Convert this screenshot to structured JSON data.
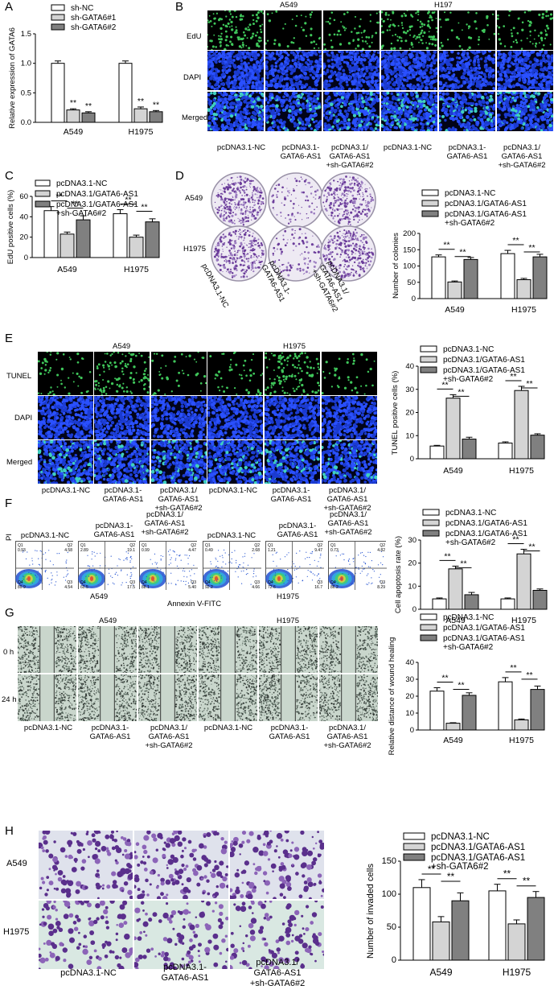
{
  "colors": {
    "white_bar": "#ffffff",
    "light_bar": "#d4d4d4",
    "dark_bar": "#808080",
    "fluor_blue": "#0d1aa0",
    "edu_green": "#3fc65a",
    "crystal_violet": "#6b3c9a",
    "wound_bg": "#c9d6cc"
  },
  "panel_labels": {
    "a": "A",
    "b": "B",
    "c": "C",
    "d": "D",
    "e": "E",
    "f": "F",
    "g": "G",
    "h": "H"
  },
  "lines": {
    "a549": "A549",
    "h197": "H197",
    "h1975": "H1975"
  },
  "groups": {
    "nc": "pcDNA3.1-NC",
    "as1_a": "pcDNA3.1-",
    "as1_b": "GATA6-AS1",
    "combo_a": "pcDNA3.1/",
    "combo_b": "GATA6-AS1",
    "combo_c": "+sh-GATA6#2",
    "nc_rot": "pcDNA3.1-NC",
    "as1_rot_a": "pcDNA3.1-",
    "as1_rot_b": "GATA6-AS1",
    "combo_rot_a": "pcDNA3.1/",
    "combo_rot_b": "GATA6-AS1",
    "combo_rot_c": "+sh-GATA6#2"
  },
  "rows": {
    "edu": "EdU",
    "dapi": "DAPI",
    "merged": "Merged",
    "tunel": "TUNEL",
    "t0": "0 h",
    "t24": "24 h"
  },
  "legend": {
    "sh_nc": "sh-NC",
    "sh1": "sh-GATA6#1",
    "sh2": "sh-GATA6#2",
    "nc": "pcDNA3.1-NC",
    "as1": "pcDNA3.1/GATA6-AS1",
    "combo_a": "pcDNA3.1/GATA6-AS1",
    "combo_b": "+sh-GATA6#2"
  },
  "sig": "**",
  "flow": {
    "axis_y": "PI",
    "axis_x": "Annexin V-FITC",
    "quadrants": [
      {
        "q1": "0.93",
        "q2": "4.58",
        "q3": "4.54",
        "q4": "89.9"
      },
      {
        "q1": "2.89",
        "q2": "19.1",
        "q3": "17.5",
        "q4": "60.5"
      },
      {
        "q1": "0.99",
        "q2": "4.47",
        "q3": "5.40",
        "q4": "88.1"
      },
      {
        "q1": "0.49",
        "q2": "2.68",
        "q3": "4.66",
        "q4": "92.2"
      },
      {
        "q1": "1.21",
        "q2": "9.47",
        "q3": "16.7",
        "q4": "72.6"
      },
      {
        "q1": "0.73",
        "q2": "4.82",
        "q3": "8.29",
        "q4": "86.2"
      }
    ],
    "qnames": {
      "q1": "Q1",
      "q2": "Q2",
      "q3": "Q3",
      "q4": "Q4"
    }
  },
  "chart_data": [
    {
      "id": "A",
      "type": "bar",
      "ylabel": "Relative expression of GATA6",
      "ylim": [
        0,
        1.5
      ],
      "yticks": [
        "0.0",
        "0.5",
        "1.0",
        "1.5"
      ],
      "categories": [
        "A549",
        "H1975"
      ],
      "series": [
        {
          "name": "sh-NC",
          "values": [
            1.0,
            1.0
          ],
          "err": [
            0.04,
            0.04
          ]
        },
        {
          "name": "sh-GATA6#1",
          "values": [
            0.21,
            0.23
          ],
          "err": [
            0.02,
            0.03
          ]
        },
        {
          "name": "sh-GATA6#2",
          "values": [
            0.16,
            0.18
          ],
          "err": [
            0.02,
            0.02
          ]
        }
      ]
    },
    {
      "id": "C",
      "type": "bar",
      "ylabel": "EdU positive cells (%)",
      "ylim": [
        0,
        60
      ],
      "yticks": [
        "0",
        "20",
        "40",
        "60"
      ],
      "categories": [
        "A549",
        "H1975"
      ],
      "series": [
        {
          "name": "pcDNA3.1-NC",
          "values": [
            46,
            43
          ],
          "err": [
            4,
            4
          ]
        },
        {
          "name": "pcDNA3.1/GATA6-AS1",
          "values": [
            23,
            20
          ],
          "err": [
            2,
            2
          ]
        },
        {
          "name": "pcDNA3.1/GATA6-AS1 +sh-GATA6#2",
          "values": [
            37,
            35
          ],
          "err": [
            4,
            3
          ]
        }
      ]
    },
    {
      "id": "D",
      "type": "bar",
      "ylabel": "Number of colonies",
      "ylim": [
        0,
        200
      ],
      "yticks": [
        "0",
        "50",
        "100",
        "150",
        "200"
      ],
      "categories": [
        "A549",
        "H1975"
      ],
      "series": [
        {
          "name": "pcDNA3.1-NC",
          "values": [
            128,
            138
          ],
          "err": [
            6,
            10
          ]
        },
        {
          "name": "pcDNA3.1/GATA6-AS1",
          "values": [
            51,
            58
          ],
          "err": [
            3,
            4
          ]
        },
        {
          "name": "pcDNA3.1/GATA6-AS1 +sh-GATA6#2",
          "values": [
            120,
            128
          ],
          "err": [
            6,
            8
          ]
        }
      ]
    },
    {
      "id": "E",
      "type": "bar",
      "ylabel": "TUNEL positive cells (%)",
      "ylim": [
        0,
        40
      ],
      "yticks": [
        "0",
        "10",
        "20",
        "30",
        "40"
      ],
      "categories": [
        "A549",
        "H1975"
      ],
      "series": [
        {
          "name": "pcDNA3.1-NC",
          "values": [
            5.5,
            6.8
          ],
          "err": [
            0.3,
            0.5
          ]
        },
        {
          "name": "pcDNA3.1/GATA6-AS1",
          "values": [
            26.2,
            29.5
          ],
          "err": [
            1.5,
            1.8
          ]
        },
        {
          "name": "pcDNA3.1/GATA6-AS1 +sh-GATA6#2",
          "values": [
            8.5,
            10.2
          ],
          "err": [
            0.8,
            0.6
          ]
        }
      ]
    },
    {
      "id": "F",
      "type": "bar",
      "ylabel": "Cell apoptosis rate (%)",
      "ylim": [
        0,
        30
      ],
      "yticks": [
        "0",
        "10",
        "20",
        "30"
      ],
      "categories": [
        "A549",
        "H1975"
      ],
      "series": [
        {
          "name": "pcDNA3.1-NC",
          "values": [
            4.5,
            4.5
          ],
          "err": [
            0.4,
            0.4
          ]
        },
        {
          "name": "pcDNA3.1/GATA6-AS1",
          "values": [
            17.5,
            24
          ],
          "err": [
            1.2,
            2.0
          ]
        },
        {
          "name": "pcDNA3.1/GATA6-AS1 +sh-GATA6#2",
          "values": [
            6.3,
            8.2
          ],
          "err": [
            1.0,
            0.6
          ]
        }
      ]
    },
    {
      "id": "G",
      "type": "bar",
      "ylabel": "Relative distance of wound healing",
      "ylim": [
        0,
        40
      ],
      "yticks": [
        "0",
        "10",
        "20",
        "30",
        "40"
      ],
      "categories": [
        "A549",
        "H1975"
      ],
      "series": [
        {
          "name": "pcDNA3.1-NC",
          "values": [
            23,
            28.5
          ],
          "err": [
            2,
            2.5
          ]
        },
        {
          "name": "pcDNA3.1/GATA6-AS1",
          "values": [
            4,
            6
          ],
          "err": [
            0.3,
            0.5
          ]
        },
        {
          "name": "pcDNA3.1/GATA6-AS1 +sh-GATA6#2",
          "values": [
            20.5,
            24
          ],
          "err": [
            1.5,
            2
          ]
        }
      ]
    },
    {
      "id": "H",
      "type": "bar",
      "ylabel": "Number of invaded cells",
      "ylim": [
        0,
        150
      ],
      "yticks": [
        "0",
        "50",
        "100",
        "150"
      ],
      "categories": [
        "A549",
        "H1975"
      ],
      "series": [
        {
          "name": "pcDNA3.1-NC",
          "values": [
            110,
            105
          ],
          "err": [
            12,
            10
          ]
        },
        {
          "name": "pcDNA3.1/GATA6-AS1",
          "values": [
            58,
            55
          ],
          "err": [
            8,
            6
          ]
        },
        {
          "name": "pcDNA3.1/GATA6-AS1 +sh-GATA6#2",
          "values": [
            90,
            95
          ],
          "err": [
            12,
            9
          ]
        }
      ]
    }
  ]
}
